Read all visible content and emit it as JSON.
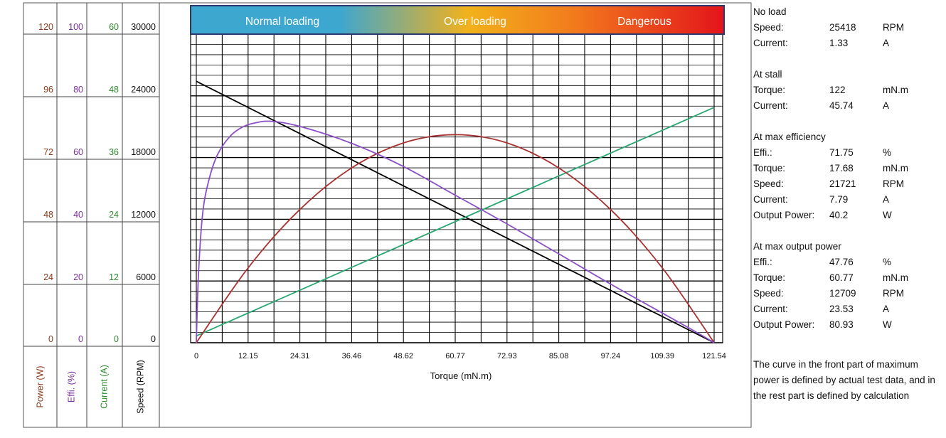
{
  "chart_data": {
    "type": "line",
    "title": "",
    "xlabel": "Torque (mN.m)",
    "x_ticks": [
      "0",
      "12.15",
      "24.31",
      "36.46",
      "48.62",
      "60.77",
      "72.93",
      "85.08",
      "97.24",
      "109.39",
      "121.54"
    ],
    "xlim": [
      0,
      121.54
    ],
    "bands": [
      {
        "label": "Normal loading"
      },
      {
        "label": "Over loading"
      },
      {
        "label": "Dangerous"
      }
    ],
    "axes": [
      {
        "key": "power",
        "label": "Power (W)",
        "color": "#8B3A1A",
        "max": 120,
        "ticks": [
          "120",
          "96",
          "72",
          "48",
          "24",
          "0"
        ]
      },
      {
        "key": "effi",
        "label": "Effi. (%)",
        "color": "#7A2E9E",
        "max": 100,
        "ticks": [
          "100",
          "80",
          "60",
          "40",
          "20",
          "0"
        ]
      },
      {
        "key": "current",
        "label": "Current (A)",
        "color": "#2E8B2E",
        "max": 60,
        "ticks": [
          "60",
          "48",
          "36",
          "24",
          "12",
          "0"
        ]
      },
      {
        "key": "speed",
        "label": "Speed (RPM)",
        "color": "#111111",
        "max": 30000,
        "ticks": [
          "30000",
          "24000",
          "18000",
          "12000",
          "6000",
          "0"
        ]
      }
    ],
    "series": [
      {
        "axis": "speed",
        "color": "#000000",
        "x": [
          0,
          121.54
        ],
        "y": [
          25418,
          0
        ]
      },
      {
        "axis": "current",
        "color": "#2BA673",
        "x": [
          0,
          121.54
        ],
        "y": [
          1.33,
          45.74
        ]
      },
      {
        "axis": "power",
        "color": "#A83232",
        "x": [
          0,
          12.15,
          24.31,
          36.46,
          48.62,
          60.77,
          72.93,
          85.08,
          97.24,
          109.39,
          121.54
        ],
        "y": [
          0,
          29.1,
          51.8,
          68.0,
          77.7,
          80.9,
          77.7,
          68.0,
          51.8,
          29.1,
          0
        ]
      },
      {
        "axis": "effi",
        "color": "#8A4FC7",
        "x": [
          0,
          0.5,
          1.5,
          3,
          5,
          8,
          11,
          14,
          17.68,
          24.31,
          36.46,
          48.62,
          60.77,
          72.93,
          85.08,
          97.24,
          109.39,
          117,
          121.54
        ],
        "y": [
          0,
          22,
          42,
          53,
          61,
          67,
          70,
          71.3,
          71.75,
          70.1,
          64.6,
          57.1,
          47.8,
          38.5,
          28.8,
          19.0,
          9.6,
          3.7,
          0
        ]
      }
    ]
  },
  "specs": [
    {
      "title": "No load",
      "rows": [
        {
          "label": "Speed:",
          "value": "25418",
          "unit": "RPM"
        },
        {
          "label": "Current:",
          "value": "1.33",
          "unit": "A"
        }
      ]
    },
    {
      "title": "At stall",
      "rows": [
        {
          "label": "Torque:",
          "value": "122",
          "unit": "mN.m"
        },
        {
          "label": "Current:",
          "value": "45.74",
          "unit": "A"
        }
      ]
    },
    {
      "title": "At max efficiency",
      "rows": [
        {
          "label": "Effi.:",
          "value": "71.75",
          "unit": "%"
        },
        {
          "label": "Torque:",
          "value": "17.68",
          "unit": "mN.m"
        },
        {
          "label": "Speed:",
          "value": "21721",
          "unit": "RPM"
        },
        {
          "label": "Current:",
          "value": "7.79",
          "unit": "A"
        },
        {
          "label": "Output Power:",
          "value": "40.2",
          "unit": "W"
        }
      ]
    },
    {
      "title": "At max output power",
      "rows": [
        {
          "label": "Effi.:",
          "value": "47.76",
          "unit": "%"
        },
        {
          "label": "Torque:",
          "value": "60.77",
          "unit": "mN.m"
        },
        {
          "label": "Speed:",
          "value": "12709",
          "unit": "RPM"
        },
        {
          "label": "Current:",
          "value": "23.53",
          "unit": "A"
        },
        {
          "label": "Output Power:",
          "value": "80.93",
          "unit": "W"
        }
      ]
    }
  ],
  "note": "The curve in the front part of maximum power is defined by actual test data, and in the rest part is defined by calculation"
}
